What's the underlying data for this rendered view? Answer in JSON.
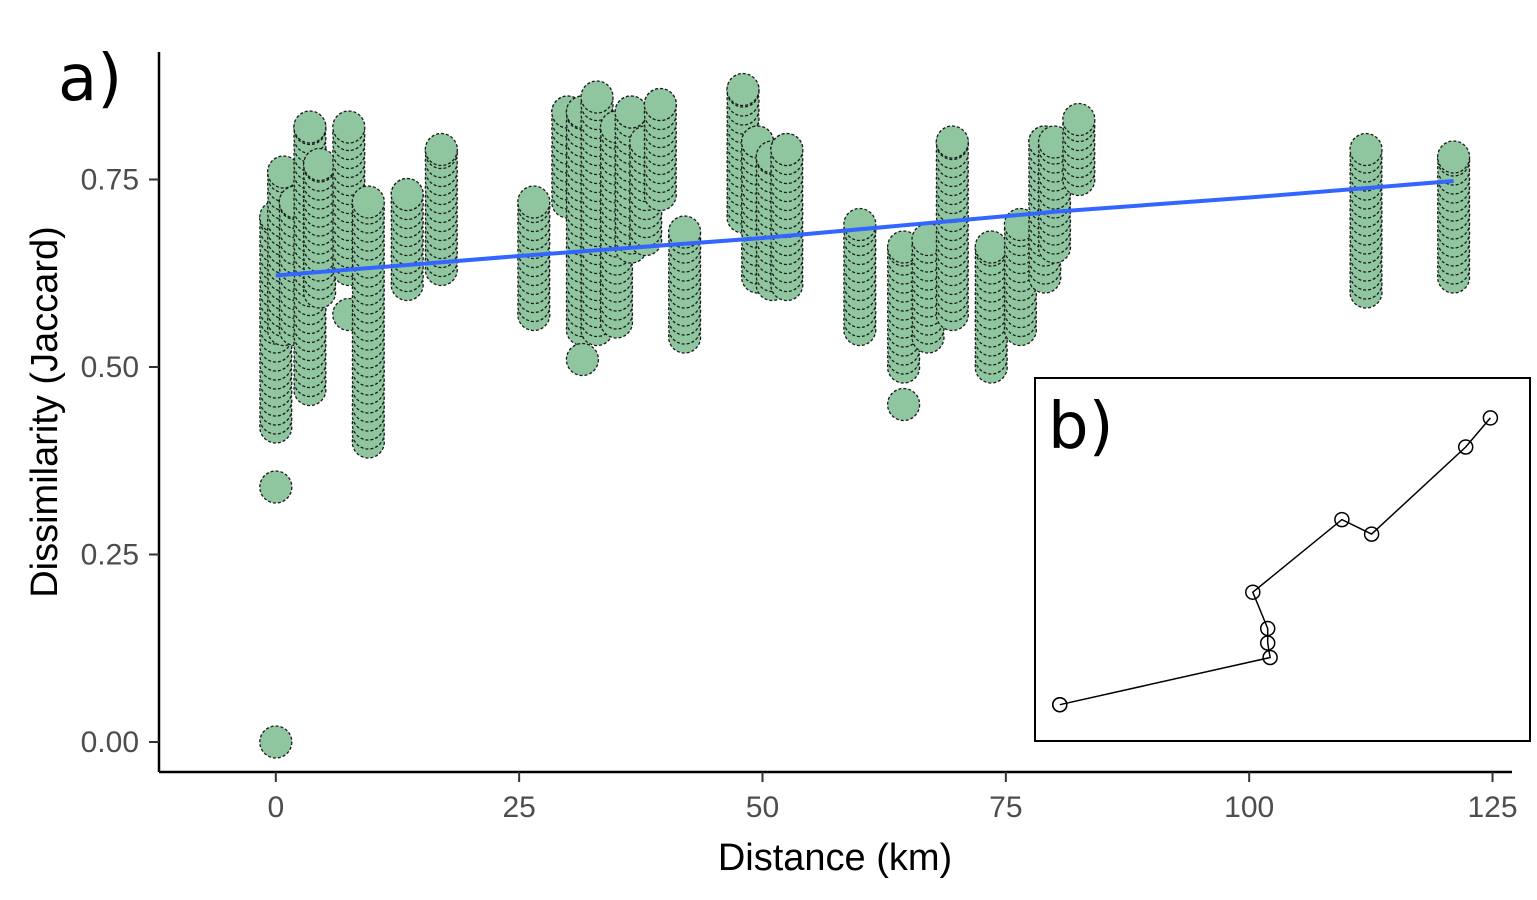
{
  "chart_data": [
    {
      "type": "scatter",
      "panel_label": "a)",
      "xlabel": "Distance (km)",
      "ylabel": "Dissimilarity (Jaccard)",
      "xlim": [
        -12,
        127
      ],
      "ylim": [
        -0.04,
        0.92
      ],
      "x_ticks": [
        0,
        25,
        50,
        75,
        100,
        125
      ],
      "y_ticks": [
        0.0,
        0.25,
        0.5,
        0.75
      ],
      "x_tick_labels": [
        "0",
        "25",
        "50",
        "75",
        "100",
        "125"
      ],
      "y_tick_labels": [
        "0.00",
        "0.25",
        "0.50",
        "0.75"
      ],
      "grid": false,
      "point_fill": "#8fc69f",
      "point_stroke": "#1a1a1a",
      "trend_color": "#3366ff",
      "trend_line": {
        "x": [
          0,
          25,
          50,
          80,
          100,
          121
        ],
        "y": [
          0.622,
          0.648,
          0.672,
          0.707,
          0.726,
          0.748
        ]
      },
      "point_groups": [
        {
          "x": 0,
          "y_min": 0.42,
          "y_max": 0.7,
          "extra": [
            0.34,
            0.0
          ]
        },
        {
          "x": 0.8,
          "y_min": 0.55,
          "y_max": 0.76,
          "extra": []
        },
        {
          "x": 2,
          "y_min": 0.55,
          "y_max": 0.72,
          "extra": []
        },
        {
          "x": 3.5,
          "y_min": 0.47,
          "y_max": 0.82,
          "extra": []
        },
        {
          "x": 4.5,
          "y_min": 0.6,
          "y_max": 0.77,
          "extra": []
        },
        {
          "x": 7.5,
          "y_min": 0.63,
          "y_max": 0.82,
          "extra": [
            0.57
          ]
        },
        {
          "x": 9.5,
          "y_min": 0.4,
          "y_max": 0.72,
          "extra": []
        },
        {
          "x": 13.5,
          "y_min": 0.61,
          "y_max": 0.73,
          "extra": []
        },
        {
          "x": 17,
          "y_min": 0.63,
          "y_max": 0.79,
          "extra": []
        },
        {
          "x": 26.5,
          "y_min": 0.57,
          "y_max": 0.72,
          "extra": []
        },
        {
          "x": 30,
          "y_min": 0.72,
          "y_max": 0.84,
          "extra": []
        },
        {
          "x": 31.5,
          "y_min": 0.55,
          "y_max": 0.84,
          "extra": [
            0.51
          ]
        },
        {
          "x": 33,
          "y_min": 0.55,
          "y_max": 0.86,
          "extra": []
        },
        {
          "x": 35,
          "y_min": 0.56,
          "y_max": 0.82,
          "extra": []
        },
        {
          "x": 36.5,
          "y_min": 0.66,
          "y_max": 0.84,
          "extra": []
        },
        {
          "x": 38,
          "y_min": 0.67,
          "y_max": 0.8,
          "extra": []
        },
        {
          "x": 39.5,
          "y_min": 0.73,
          "y_max": 0.85,
          "extra": []
        },
        {
          "x": 42,
          "y_min": 0.54,
          "y_max": 0.68,
          "extra": []
        },
        {
          "x": 48,
          "y_min": 0.7,
          "y_max": 0.87,
          "extra": []
        },
        {
          "x": 49.5,
          "y_min": 0.62,
          "y_max": 0.8,
          "extra": []
        },
        {
          "x": 51,
          "y_min": 0.61,
          "y_max": 0.78,
          "extra": []
        },
        {
          "x": 52.5,
          "y_min": 0.61,
          "y_max": 0.79,
          "extra": []
        },
        {
          "x": 60,
          "y_min": 0.55,
          "y_max": 0.69,
          "extra": []
        },
        {
          "x": 64.5,
          "y_min": 0.5,
          "y_max": 0.66,
          "extra": [
            0.45
          ]
        },
        {
          "x": 67,
          "y_min": 0.54,
          "y_max": 0.67,
          "extra": []
        },
        {
          "x": 69.5,
          "y_min": 0.57,
          "y_max": 0.8,
          "extra": []
        },
        {
          "x": 73.5,
          "y_min": 0.5,
          "y_max": 0.66,
          "extra": []
        },
        {
          "x": 76.5,
          "y_min": 0.55,
          "y_max": 0.69,
          "extra": []
        },
        {
          "x": 79,
          "y_min": 0.62,
          "y_max": 0.8,
          "extra": []
        },
        {
          "x": 80,
          "y_min": 0.66,
          "y_max": 0.8,
          "extra": []
        },
        {
          "x": 82.5,
          "y_min": 0.75,
          "y_max": 0.83,
          "extra": []
        },
        {
          "x": 112,
          "y_min": 0.6,
          "y_max": 0.79,
          "extra": []
        },
        {
          "x": 121,
          "y_min": 0.62,
          "y_max": 0.78,
          "extra": []
        }
      ]
    },
    {
      "type": "line",
      "panel_label": "b)",
      "xlim": [
        0,
        100
      ],
      "ylim": [
        0,
        100
      ],
      "grid": false,
      "x": [
        5,
        5,
        47.5,
        47,
        47,
        44,
        62,
        68,
        87,
        92
      ],
      "y": [
        10,
        10,
        23,
        27,
        31,
        41,
        61,
        57,
        81,
        89
      ]
    }
  ]
}
